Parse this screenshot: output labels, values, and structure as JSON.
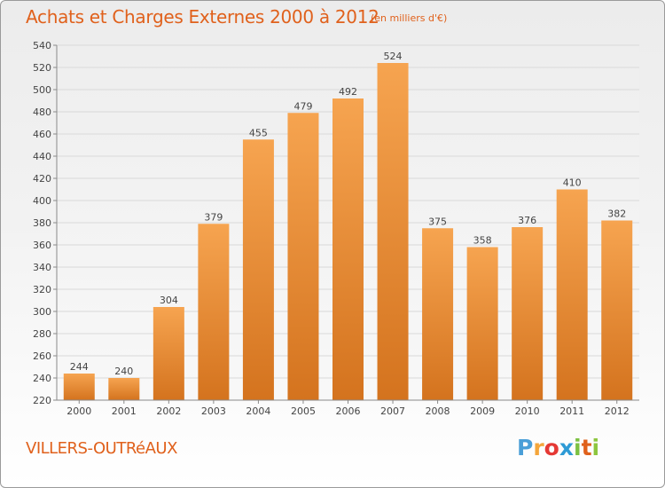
{
  "title": "Achats et Charges Externes 2000 à 2012",
  "subtitle": "(en milliers d'€)",
  "location": "VILLERS-OUTRéAUX",
  "logo": {
    "letters": [
      "P",
      "r",
      "o",
      "x",
      "i",
      "t",
      "i"
    ],
    "colors": [
      "#4a9fd8",
      "#f4a63b",
      "#e53935",
      "#2e9bd6",
      "#7cc142",
      "#e0611c",
      "#8dc63f"
    ]
  },
  "colors": {
    "bar_light": "#f6a450",
    "bar_dark": "#d4731e",
    "accent": "#e0611c",
    "grid": "#d9d9d9"
  },
  "chart_data": {
    "type": "bar",
    "categories": [
      "2000",
      "2001",
      "2002",
      "2003",
      "2004",
      "2005",
      "2006",
      "2007",
      "2008",
      "2009",
      "2010",
      "2011",
      "2012"
    ],
    "values": [
      244,
      240,
      304,
      379,
      455,
      479,
      492,
      524,
      375,
      358,
      376,
      410,
      382
    ],
    "ylim": [
      220,
      540
    ],
    "yticks": [
      220,
      240,
      260,
      280,
      300,
      320,
      340,
      360,
      380,
      400,
      420,
      440,
      460,
      480,
      500,
      520,
      540
    ],
    "grid": true,
    "data_labels": true
  }
}
